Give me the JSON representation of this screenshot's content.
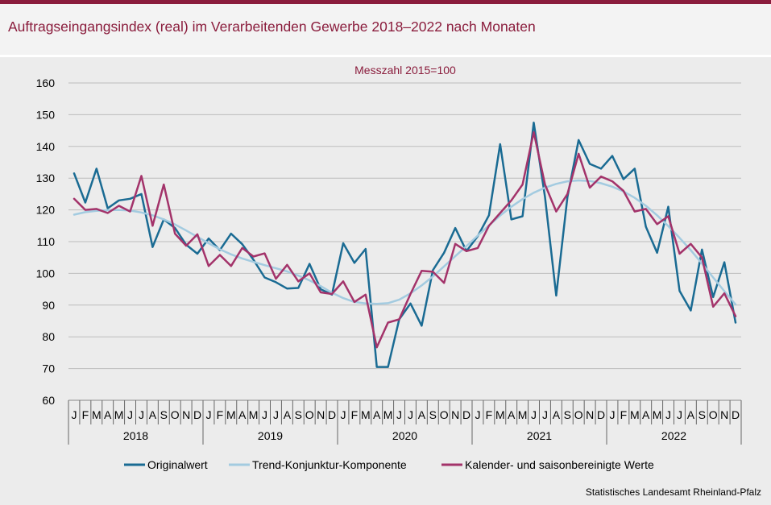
{
  "chart_data": {
    "type": "line",
    "title": "Auftragseingangsindex (real) im Verarbeitenden Gewerbe 2018–2022 nach Monaten",
    "subtitle": "Messzahl 2015=100",
    "ylim": [
      60,
      160
    ],
    "yticks": [
      60,
      70,
      80,
      90,
      100,
      110,
      120,
      130,
      140,
      150,
      160
    ],
    "grid": true,
    "legend_position": "bottom",
    "month_labels": [
      "J",
      "F",
      "M",
      "A",
      "M",
      "J",
      "J",
      "A",
      "S",
      "O",
      "N",
      "D"
    ],
    "years": [
      "2018",
      "2019",
      "2020",
      "2021",
      "2022"
    ],
    "series": [
      {
        "name": "Originalwert",
        "color": "#1a6b93",
        "values": [
          131.5,
          122.3,
          133.0,
          120.5,
          123.0,
          123.5,
          125.0,
          108.3,
          117.0,
          114.3,
          109.0,
          106.2,
          111.0,
          107.3,
          112.5,
          109.2,
          104.3,
          98.7,
          97.2,
          95.2,
          95.4,
          103.0,
          95.0,
          93.3,
          109.5,
          103.3,
          107.7,
          70.5,
          70.5,
          85.5,
          90.5,
          83.5,
          101.0,
          106.5,
          114.3,
          107.0,
          111.7,
          118.3,
          140.7,
          117.0,
          118.0,
          147.5,
          124.0,
          93.0,
          124.0,
          142.0,
          134.5,
          133.0,
          137.0,
          129.7,
          133.0,
          114.7,
          106.5,
          121.0,
          94.5,
          88.3,
          107.5,
          92.5,
          103.5,
          84.5
        ]
      },
      {
        "name": "Trend-Konjunktur-Komponente",
        "color": "#a3cbe0",
        "values": [
          118.5,
          119.3,
          119.7,
          119.9,
          120.0,
          119.8,
          119.2,
          118.3,
          117.0,
          115.4,
          113.5,
          111.5,
          109.5,
          107.6,
          106.0,
          104.7,
          103.6,
          102.6,
          101.6,
          100.6,
          99.3,
          97.8,
          96.0,
          93.9,
          92.2,
          91.0,
          90.5,
          90.4,
          90.6,
          91.7,
          93.7,
          96.2,
          99.0,
          102.2,
          105.4,
          108.6,
          111.9,
          115.1,
          118.2,
          121.0,
          123.4,
          125.4,
          127.0,
          128.2,
          129.0,
          129.3,
          129.1,
          128.4,
          127.3,
          125.8,
          123.8,
          121.3,
          118.3,
          114.9,
          111.2,
          107.3,
          103.1,
          98.7,
          94.4,
          90.2
        ]
      },
      {
        "name": "Kalender- und saisonbereinigte Werte",
        "color": "#a3336a",
        "values": [
          123.5,
          120.0,
          120.3,
          119.0,
          121.3,
          119.5,
          130.7,
          115.0,
          128.0,
          112.5,
          108.7,
          112.3,
          102.3,
          105.8,
          102.3,
          108.0,
          105.3,
          106.3,
          98.3,
          102.7,
          97.5,
          100.0,
          94.0,
          93.5,
          97.5,
          91.0,
          93.3,
          76.7,
          84.5,
          85.5,
          93.5,
          100.8,
          100.5,
          97.0,
          109.3,
          107.0,
          108.0,
          115.0,
          119.0,
          123.0,
          128.0,
          144.5,
          128.0,
          119.5,
          125.0,
          137.7,
          127.0,
          130.5,
          129.0,
          126.0,
          119.5,
          120.3,
          115.5,
          118.0,
          106.2,
          109.3,
          105.0,
          89.5,
          93.7,
          86.5
        ]
      }
    ],
    "source": "Statistisches Landesamt Rheinland-Pfalz"
  }
}
